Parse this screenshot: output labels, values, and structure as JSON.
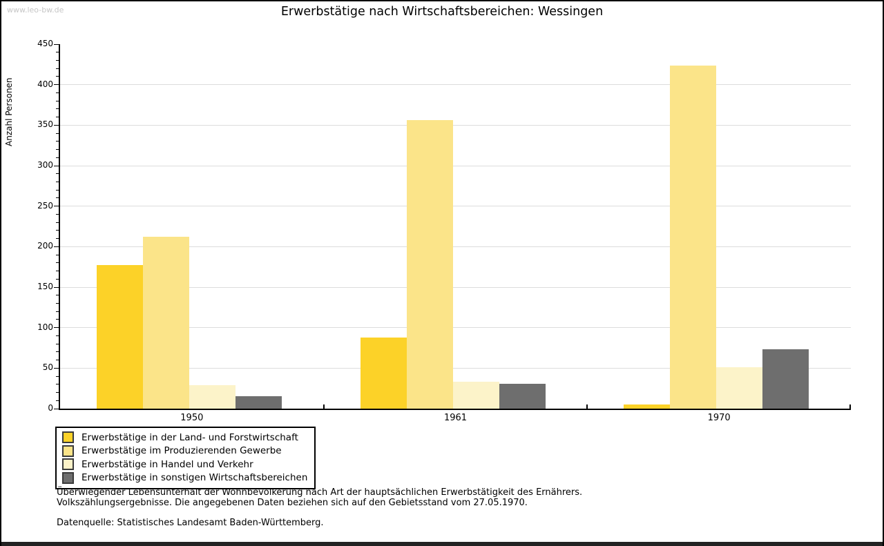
{
  "watermark": "www.leo-bw.de",
  "title": "Erwerbstätige nach Wirtschaftsbereichen: Wessingen",
  "footer": {
    "note_line1": "Überwiegender Lebensunterhalt der Wohnbevölkerung nach Art der hauptsächlichen Erwerbstätigkeit des Ernährers.",
    "note_line2": "Volkszählungsergebnisse. Die angegebenen Daten beziehen sich auf den Gebietsstand vom 27.05.1970.",
    "source": "Datenquelle: Statistisches Landesamt Baden-Württemberg."
  },
  "colors": {
    "grid": "#DCDCDC",
    "axis": "#000000",
    "watermark": "#C6C6C6",
    "frame_border": "#000000",
    "legend_border": "#000000",
    "swatch_border": "#3A3A3A"
  },
  "chart_data": {
    "type": "bar",
    "title": "Erwerbstätige nach Wirtschaftsbereichen: Wessingen",
    "xlabel": "",
    "ylabel": "Anzahl Personen",
    "categories": [
      "1950",
      "1961",
      "1970"
    ],
    "series": [
      {
        "name": "Erwerbstätige in der Land- und Forstwirtschaft",
        "color": "#FCD228",
        "values": [
          177,
          88,
          5
        ]
      },
      {
        "name": "Erwerbstätige im Produzierenden Gewerbe",
        "color": "#FBE489",
        "values": [
          212,
          356,
          424
        ]
      },
      {
        "name": "Erwerbstätige in Handel und Verkehr",
        "color": "#FCF3C9",
        "values": [
          29,
          33,
          51
        ]
      },
      {
        "name": "Erwerbstätige in sonstigen Wirtschaftsbereichen",
        "color": "#6E6E6E",
        "values": [
          15,
          31,
          73
        ]
      }
    ],
    "ylim": [
      0,
      450
    ],
    "ytick_step": 50,
    "ytick_minor_step": 10,
    "grid": true,
    "legend_position": "bottom-left"
  }
}
